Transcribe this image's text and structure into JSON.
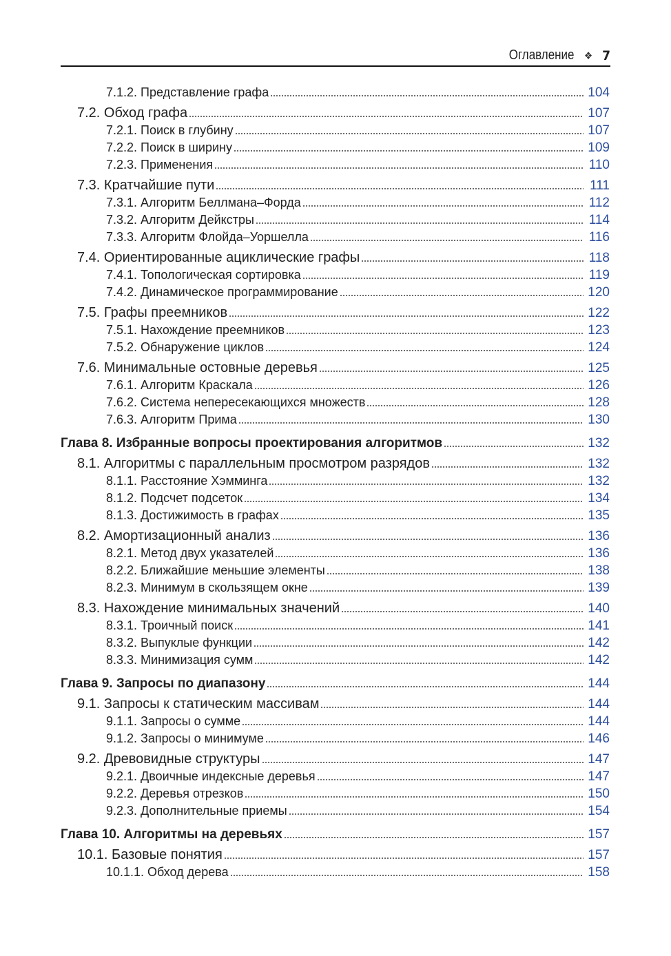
{
  "header": {
    "title": "Оглавление",
    "ornament": "❖",
    "page_number": "7"
  },
  "entries": [
    {
      "level": 3,
      "text": "7.1.2. Представление графа",
      "page": "104"
    },
    {
      "level": 2,
      "text": "7.2. Обход графа",
      "page": "107"
    },
    {
      "level": 3,
      "text": "7.2.1. Поиск в глубину",
      "page": "107"
    },
    {
      "level": 3,
      "text": "7.2.2. Поиск в ширину",
      "page": "109"
    },
    {
      "level": 3,
      "text": "7.2.3. Применения",
      "page": "110"
    },
    {
      "level": 2,
      "text": "7.3. Кратчайшие пути",
      "page": "111"
    },
    {
      "level": 3,
      "text": "7.3.1. Алгоритм Беллмана–Форда",
      "page": "112"
    },
    {
      "level": 3,
      "text": "7.3.2. Алгоритм Дейкстры",
      "page": "114"
    },
    {
      "level": 3,
      "text": "7.3.3. Алгоритм Флойда–Уоршелла",
      "page": "116"
    },
    {
      "level": 2,
      "text": "7.4. Ориентированные ациклические графы",
      "page": "118"
    },
    {
      "level": 3,
      "text": "7.4.1. Топологическая сортировка",
      "page": "119"
    },
    {
      "level": 3,
      "text": "7.4.2. Динамическое программирование",
      "page": "120"
    },
    {
      "level": 2,
      "text": "7.5. Графы преемников",
      "page": "122"
    },
    {
      "level": 3,
      "text": "7.5.1. Нахождение преемников",
      "page": "123"
    },
    {
      "level": 3,
      "text": "7.5.2. Обнаружение циклов",
      "page": "124"
    },
    {
      "level": 2,
      "text": "7.6. Минимальные остовные деревья",
      "page": "125"
    },
    {
      "level": 3,
      "text": "7.6.1. Алгоритм Краскала",
      "page": "126"
    },
    {
      "level": 3,
      "text": "7.6.2. Система непересекающихся множеств",
      "page": "128"
    },
    {
      "level": 3,
      "text": "7.6.3. Алгоритм Прима",
      "page": "130"
    },
    {
      "level": 1,
      "text": "Глава 8. Избранные вопросы проектирования алгоритмов",
      "page": "132"
    },
    {
      "level": 2,
      "text": "8.1. Алгоритмы с параллельным просмотром разрядов",
      "page": "132"
    },
    {
      "level": 3,
      "text": "8.1.1. Расстояние Хэмминга",
      "page": "132"
    },
    {
      "level": 3,
      "text": "8.1.2. Подсчет подсеток",
      "page": "134"
    },
    {
      "level": 3,
      "text": "8.1.3. Достижимость в графах",
      "page": "135"
    },
    {
      "level": 2,
      "text": "8.2. Амортизационный анализ",
      "page": "136"
    },
    {
      "level": 3,
      "text": "8.2.1. Метод двух указателей",
      "page": "136"
    },
    {
      "level": 3,
      "text": "8.2.2. Ближайшие меньшие элементы",
      "page": "138"
    },
    {
      "level": 3,
      "text": "8.2.3. Минимум в скользящем окне",
      "page": "139"
    },
    {
      "level": 2,
      "text": "8.3. Нахождение минимальных значений",
      "page": "140"
    },
    {
      "level": 3,
      "text": "8.3.1. Троичный поиск",
      "page": "141"
    },
    {
      "level": 3,
      "text": "8.3.2. Выпуклые функции",
      "page": "142"
    },
    {
      "level": 3,
      "text": "8.3.3. Минимизация сумм",
      "page": "142"
    },
    {
      "level": 1,
      "text": "Глава 9. Запросы по диапазону",
      "page": "144"
    },
    {
      "level": 2,
      "text": "9.1. Запросы к статическим массивам",
      "page": "144"
    },
    {
      "level": 3,
      "text": "9.1.1. Запросы о сумме",
      "page": "144"
    },
    {
      "level": 3,
      "text": "9.1.2. Запросы о минимуме",
      "page": "146"
    },
    {
      "level": 2,
      "text": "9.2. Древовидные структуры",
      "page": "147"
    },
    {
      "level": 3,
      "text": "9.2.1. Двоичные индексные деревья",
      "page": "147"
    },
    {
      "level": 3,
      "text": "9.2.2. Деревья отрезков",
      "page": "150"
    },
    {
      "level": 3,
      "text": "9.2.3. Дополнительные приемы",
      "page": "154"
    },
    {
      "level": 1,
      "text": "Глава 10. Алгоритмы на деревьях",
      "page": "157"
    },
    {
      "level": 2,
      "text": "10.1. Базовые понятия",
      "page": "157"
    },
    {
      "level": 3,
      "text": "10.1.1. Обход дерева",
      "page": "158"
    }
  ]
}
